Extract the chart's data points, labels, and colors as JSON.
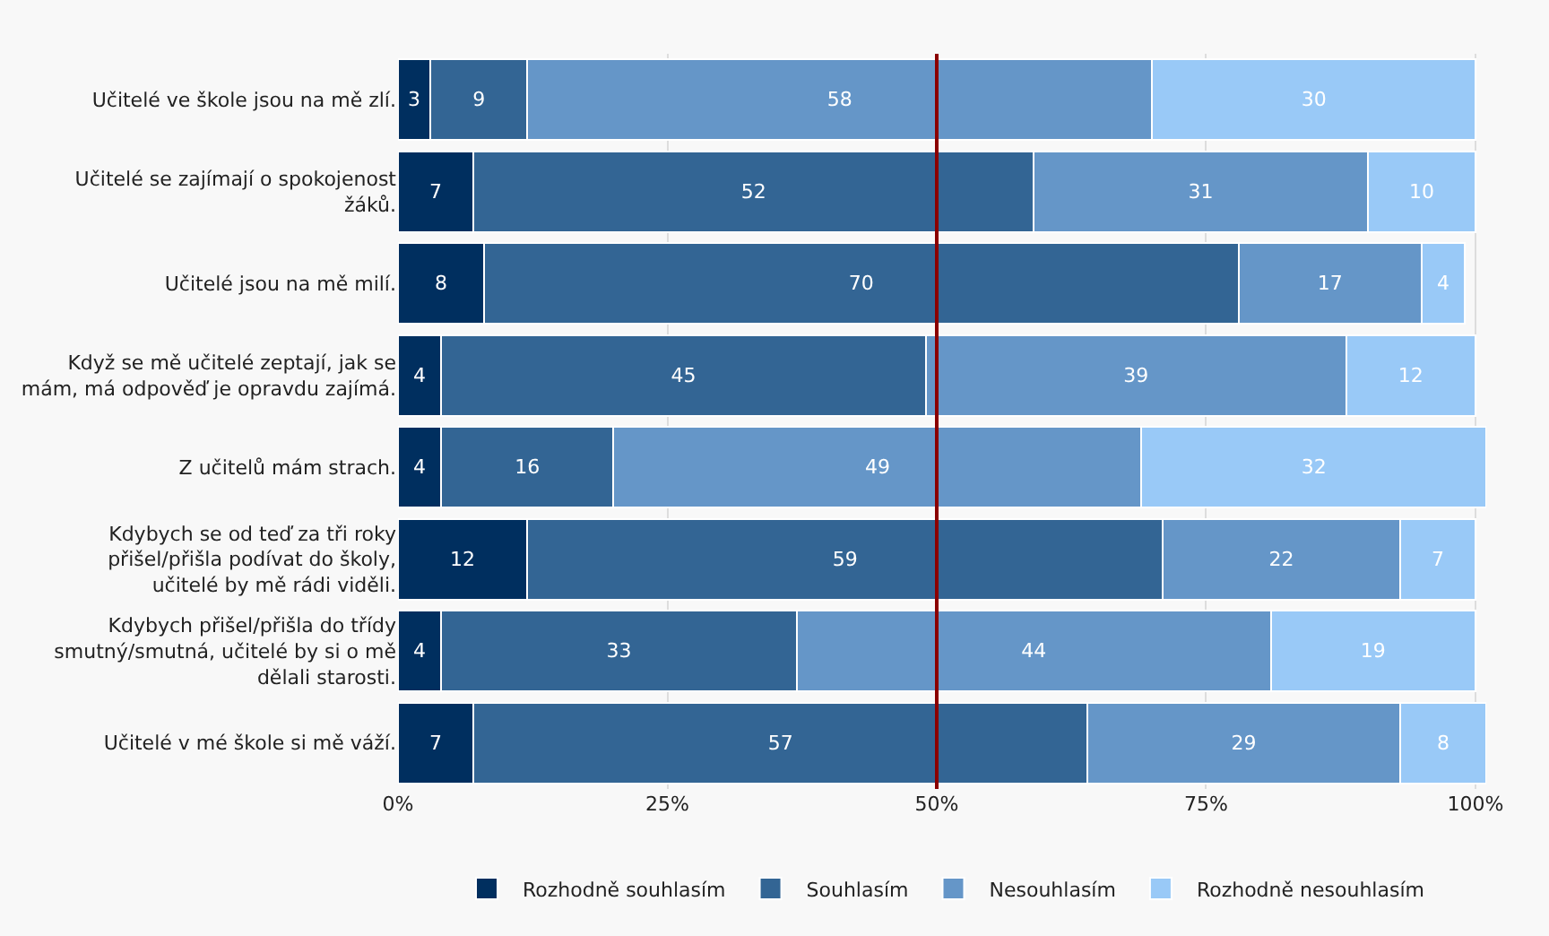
{
  "chart_data": {
    "type": "bar",
    "orientation": "horizontal",
    "stacked": true,
    "data_labels": true,
    "grid": "x",
    "legend": "bottom",
    "categories": [
      "Učitelé ve škole jsou na mě zlí.",
      "Učitelé se zajímají o spokojenost žáků.",
      "Učitelé jsou na mě milí.",
      "Když se mě učitelé zeptají, jak se mám, má odpověď je opravdu zajímá.",
      "Z učitelů mám strach.",
      "Kdybych se od teď za tři roky přišel/přišla podívat do školy, učitelé by mě rádi viděli.",
      "Kdybych přišel/přišla do třídy smutný/smutná, učitelé by si o mě dělali starosti.",
      "Učitelé v mé škole si mě váží."
    ],
    "series": [
      {
        "name": "Rozhodně souhlasím",
        "color": "#002f5f",
        "values": [
          3,
          7,
          8,
          4,
          4,
          12,
          4,
          7
        ]
      },
      {
        "name": "Souhlasím",
        "color": "#336594",
        "values": [
          9,
          52,
          70,
          45,
          16,
          59,
          33,
          57
        ]
      },
      {
        "name": "Nesouhlasím",
        "color": "#6596c8",
        "values": [
          58,
          31,
          17,
          39,
          49,
          22,
          44,
          29
        ]
      },
      {
        "name": "Rozhodně nesouhlasím",
        "color": "#99c9f7",
        "values": [
          30,
          10,
          4,
          12,
          32,
          7,
          19,
          8
        ]
      }
    ],
    "xlim": [
      0,
      101
    ],
    "xticks": [
      {
        "value": 0,
        "label": "0%"
      },
      {
        "value": 25,
        "label": "25%"
      },
      {
        "value": 50,
        "label": "50%"
      },
      {
        "value": 75,
        "label": "75%"
      },
      {
        "value": 100,
        "label": "100%"
      }
    ],
    "ref_lines": [
      {
        "axis": "x",
        "value": 50,
        "label": null,
        "color": "#8b0000"
      }
    ]
  }
}
